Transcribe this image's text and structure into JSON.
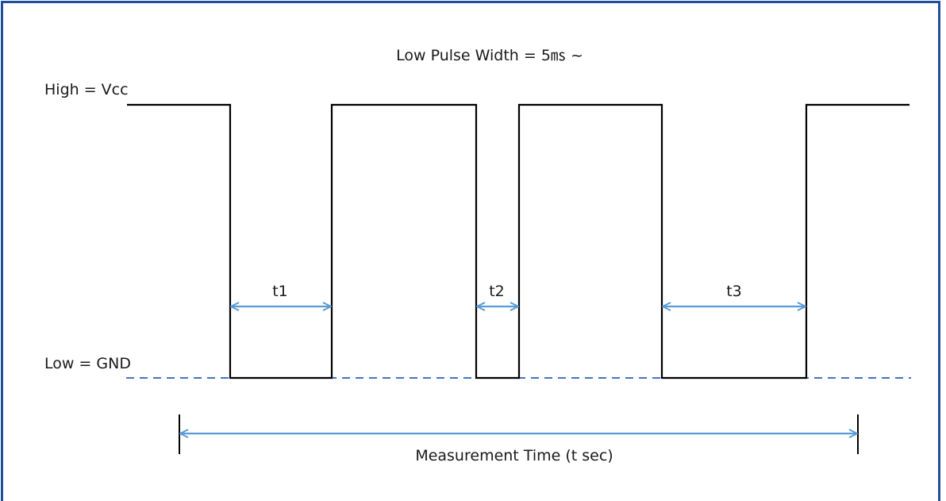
{
  "diagram": {
    "title": "Low Pulse Width = 5㎳ ~",
    "high_label": "High = Vcc",
    "low_label": "Low = GND",
    "intervals": [
      {
        "label": "t1"
      },
      {
        "label": "t2"
      },
      {
        "label": "t3"
      }
    ],
    "measurement_label": "Measurement Time (t sec)",
    "colors": {
      "frame": "#1f4e9c",
      "signal": "#000000",
      "gnd_line": "#4472c4",
      "arrows": "#5b9bd5"
    }
  }
}
